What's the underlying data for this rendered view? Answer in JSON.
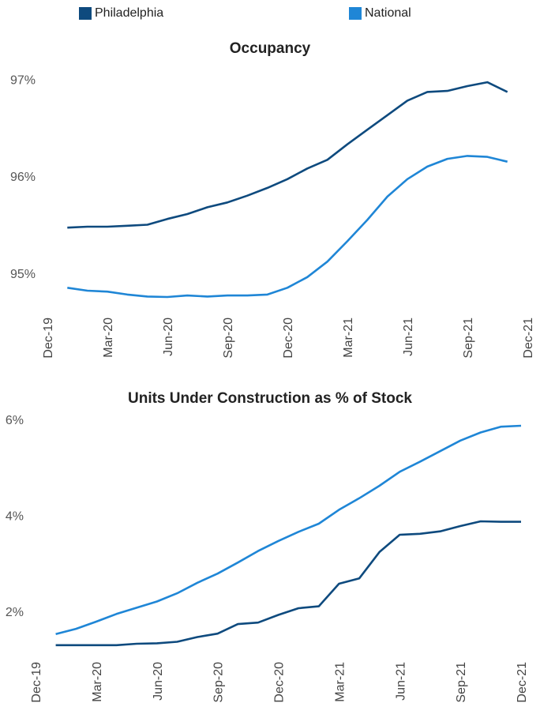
{
  "legend": {
    "items": [
      {
        "label": "Philadelphia",
        "color": "#0e4a7e"
      },
      {
        "label": "National",
        "color": "#1f86d6"
      }
    ]
  },
  "chart_data": [
    {
      "type": "line",
      "title": "Occupancy",
      "xlabel": "",
      "ylabel": "",
      "x_tick_labels": [
        "Dec-19",
        "Mar-20",
        "Jun-20",
        "Sep-20",
        "Dec-20",
        "Mar-21",
        "Jun-21",
        "Sep-21",
        "Dec-21"
      ],
      "y_tick_labels": [
        "97%",
        "96%",
        "95%"
      ],
      "y_tick_values": [
        97,
        96,
        95
      ],
      "ylim": [
        94.6,
        97.15
      ],
      "x": [
        "Jan-20",
        "Feb-20",
        "Mar-20",
        "Apr-20",
        "May-20",
        "Jun-20",
        "Jul-20",
        "Aug-20",
        "Sep-20",
        "Oct-20",
        "Nov-20",
        "Dec-20",
        "Jan-21",
        "Feb-21",
        "Mar-21",
        "Apr-21",
        "May-21",
        "Jun-21",
        "Jul-21",
        "Aug-21",
        "Sep-21",
        "Oct-21",
        "Nov-21"
      ],
      "series": [
        {
          "name": "Philadelphia",
          "color": "#0e4a7e",
          "values": [
            95.47,
            95.48,
            95.48,
            95.49,
            95.5,
            95.56,
            95.61,
            95.68,
            95.73,
            95.8,
            95.88,
            95.97,
            96.08,
            96.17,
            96.33,
            96.48,
            96.63,
            96.78,
            96.87,
            96.88,
            96.93,
            96.97,
            96.87
          ]
        },
        {
          "name": "National",
          "color": "#1f86d6",
          "values": [
            94.85,
            94.82,
            94.81,
            94.78,
            94.76,
            94.755,
            94.77,
            94.76,
            94.77,
            94.77,
            94.78,
            94.85,
            94.96,
            95.12,
            95.33,
            95.55,
            95.79,
            95.97,
            96.1,
            96.18,
            96.21,
            96.2,
            96.15
          ]
        }
      ]
    },
    {
      "type": "line",
      "title": "Units Under Construction as % of Stock",
      "xlabel": "",
      "ylabel": "",
      "x_tick_labels": [
        "Dec-19",
        "Mar-20",
        "Jun-20",
        "Sep-20",
        "Dec-20",
        "Mar-21",
        "Jun-21",
        "Sep-21",
        "Dec-21"
      ],
      "y_tick_labels": [
        "6%",
        "4%",
        "2%"
      ],
      "y_tick_values": [
        6,
        4,
        2
      ],
      "ylim": [
        1.05,
        6.1
      ],
      "x": [
        "Jan-20",
        "Feb-20",
        "Mar-20",
        "Apr-20",
        "May-20",
        "Jun-20",
        "Jul-20",
        "Aug-20",
        "Sep-20",
        "Oct-20",
        "Nov-20",
        "Dec-20",
        "Jan-21",
        "Feb-21",
        "Mar-21",
        "Apr-21",
        "May-21",
        "Jun-21",
        "Jul-21",
        "Aug-21",
        "Sep-21",
        "Oct-21",
        "Nov-21",
        "Dec-21"
      ],
      "series": [
        {
          "name": "Philadelphia",
          "color": "#0e4a7e",
          "values": [
            1.3,
            1.3,
            1.3,
            1.3,
            1.33,
            1.34,
            1.37,
            1.47,
            1.54,
            1.74,
            1.77,
            1.93,
            2.07,
            2.11,
            2.58,
            2.69,
            3.24,
            3.6,
            3.62,
            3.67,
            3.78,
            3.88,
            3.87,
            3.87
          ]
        },
        {
          "name": "National",
          "color": "#1f86d6",
          "values": [
            1.53,
            1.64,
            1.79,
            1.95,
            2.08,
            2.21,
            2.38,
            2.6,
            2.79,
            3.02,
            3.26,
            3.47,
            3.66,
            3.83,
            4.12,
            4.36,
            4.62,
            4.91,
            5.12,
            5.34,
            5.56,
            5.73,
            5.85,
            5.87
          ]
        }
      ]
    }
  ]
}
